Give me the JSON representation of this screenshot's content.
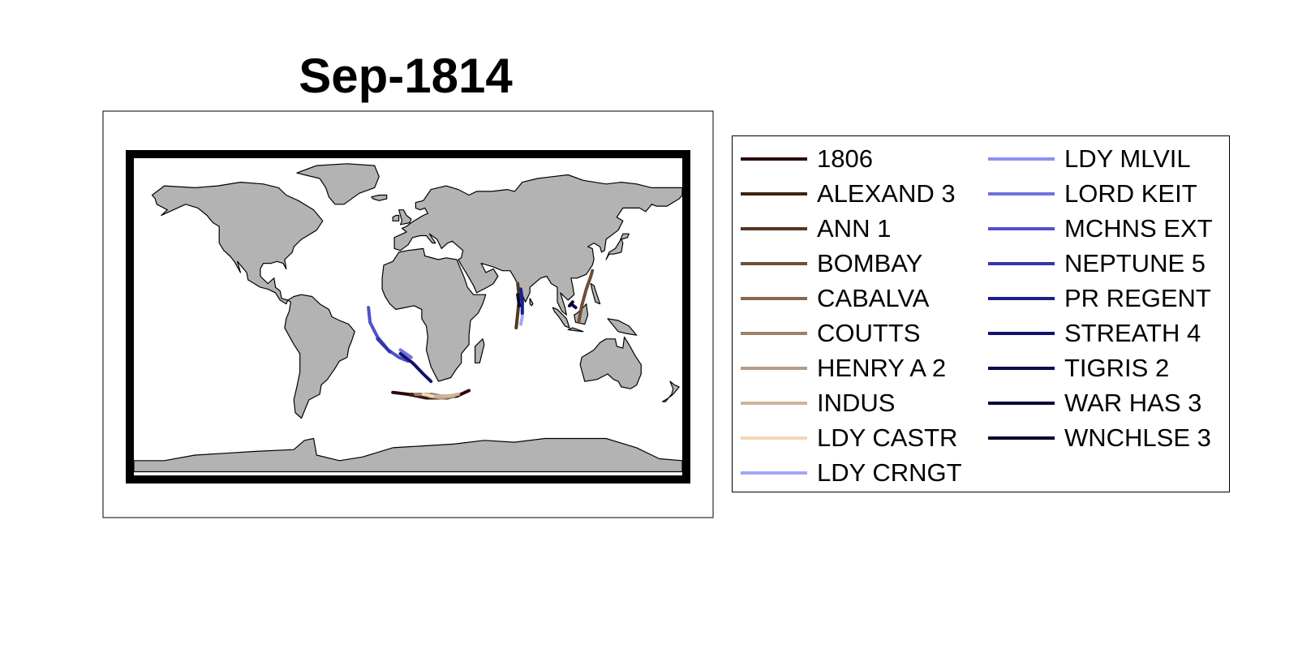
{
  "title": "Sep-1814",
  "map": {
    "land_color": "#b3b3b3",
    "coast_color": "#000000",
    "frame_color": "#000000"
  },
  "legend": {
    "placement": "right",
    "columns": 2,
    "items": [
      {
        "label": "1806",
        "color": "#2b0a0a"
      },
      {
        "label": "ALEXAND 3",
        "color": "#3d2412"
      },
      {
        "label": "ANN 1",
        "color": "#553620"
      },
      {
        "label": "BOMBAY",
        "color": "#6e4e37"
      },
      {
        "label": "CABALVA",
        "color": "#86684f"
      },
      {
        "label": "COUTTS",
        "color": "#9c8269"
      },
      {
        "label": "HENRY A 2",
        "color": "#b39c84"
      },
      {
        "label": "INDUS",
        "color": "#cfb498"
      },
      {
        "label": "LDY CASTR",
        "color": "#f5d6b8"
      },
      {
        "label": "LDY CRNGT",
        "color": "#a3a6f5"
      },
      {
        "label": "LDY MLVIL",
        "color": "#8c8ff2"
      },
      {
        "label": "LORD KEIT",
        "color": "#6e72e0"
      },
      {
        "label": "MCHNS EXT",
        "color": "#4f52c9"
      },
      {
        "label": "NEPTUNE 5",
        "color": "#3337a8"
      },
      {
        "label": "PR REGENT",
        "color": "#1c1f8a"
      },
      {
        "label": "STREATH 4",
        "color": "#10126b"
      },
      {
        "label": "TIGRIS 2",
        "color": "#0a0c4f"
      },
      {
        "label": "WAR HAS 3",
        "color": "#070838"
      },
      {
        "label": "WNCHLSE 3",
        "color": "#05052a"
      }
    ]
  },
  "tracks": [
    {
      "ship": "1806",
      "color": "#2b0a0a",
      "points": [
        [
          -10,
          -41
        ],
        [
          0,
          -42
        ],
        [
          12,
          -44
        ],
        [
          22,
          -44
        ],
        [
          32,
          -43
        ],
        [
          40,
          -40
        ]
      ]
    },
    {
      "ship": "ALEXAND 3",
      "color": "#3d2412",
      "points": [
        [
          2,
          -42
        ],
        [
          10,
          -43
        ],
        [
          18,
          -44
        ],
        [
          26,
          -44
        ],
        [
          33,
          -42
        ]
      ]
    },
    {
      "ship": "ANN 1",
      "color": "#553620",
      "points": [
        [
          72,
          18
        ],
        [
          73,
          10
        ],
        [
          72,
          2
        ],
        [
          71,
          -6
        ]
      ]
    },
    {
      "ship": "BOMBAY",
      "color": "#6e4e37",
      "points": [
        [
          112,
          -3
        ],
        [
          114,
          6
        ],
        [
          117,
          15
        ],
        [
          120,
          22
        ],
        [
          121,
          25
        ]
      ]
    },
    {
      "ship": "CABALVA",
      "color": "#86684f",
      "points": [
        [
          15,
          -42
        ],
        [
          22,
          -43
        ],
        [
          30,
          -43
        ]
      ]
    },
    {
      "ship": "COUTTS",
      "color": "#9c8269",
      "points": [
        [
          5,
          -42
        ],
        [
          12,
          -42
        ],
        [
          19,
          -43
        ]
      ]
    },
    {
      "ship": "HENRY A 2",
      "color": "#b39c84",
      "points": [
        [
          14,
          -43
        ],
        [
          22,
          -44
        ],
        [
          30,
          -43
        ]
      ]
    },
    {
      "ship": "INDUS",
      "color": "#cfb498",
      "points": [
        [
          17,
          -43
        ],
        [
          26,
          -43
        ],
        [
          33,
          -42
        ]
      ]
    },
    {
      "ship": "LDY CASTR",
      "color": "#f5d6b8",
      "points": [
        [
          10,
          -42
        ],
        [
          16,
          -43
        ]
      ]
    },
    {
      "ship": "LDY CRNGT",
      "color": "#a3a6f5",
      "points": [
        [
          75,
          8
        ],
        [
          75,
          0
        ],
        [
          74,
          -4
        ]
      ]
    },
    {
      "ship": "LORD KEIT",
      "color": "#6e72e0",
      "points": [
        [
          -5,
          -18
        ],
        [
          2,
          -22
        ]
      ]
    },
    {
      "ship": "MCHNS EXT",
      "color": "#4f52c9",
      "points": [
        [
          -26,
          5
        ],
        [
          -25,
          -3
        ],
        [
          -20,
          -11
        ],
        [
          -13,
          -18
        ],
        [
          -6,
          -22
        ],
        [
          0,
          -24
        ]
      ]
    },
    {
      "ship": "NEPTUNE 5",
      "color": "#3337a8",
      "points": [
        [
          -20,
          -12
        ],
        [
          -12,
          -19
        ]
      ]
    },
    {
      "ship": "PR REGENT",
      "color": "#1c1f8a",
      "points": [
        [
          74,
          15
        ],
        [
          75,
          9
        ],
        [
          75,
          2
        ]
      ]
    },
    {
      "ship": "STREATH 4",
      "color": "#10126b",
      "points": [
        [
          -5,
          -20
        ],
        [
          3,
          -25
        ],
        [
          10,
          -31
        ],
        [
          15,
          -35
        ]
      ]
    },
    {
      "ship": "TIGRIS 2",
      "color": "#0a0c4f",
      "points": [
        [
          107,
          7
        ],
        [
          110,
          5
        ]
      ]
    },
    {
      "ship": "WAR HAS 3",
      "color": "#070838",
      "points": [
        [
          72,
          12
        ],
        [
          73,
          6
        ]
      ]
    },
    {
      "ship": "WNCHLSE 3",
      "color": "#05052a",
      "points": [
        [
          106,
          6
        ],
        [
          108,
          8
        ]
      ]
    }
  ]
}
